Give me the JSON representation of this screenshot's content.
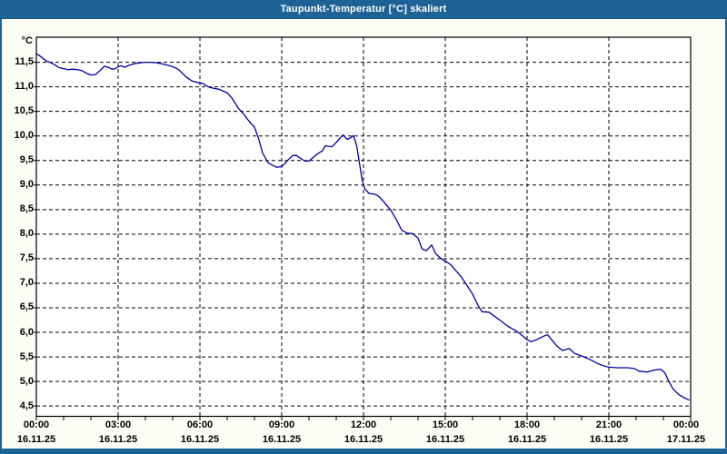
{
  "window": {
    "title": "Taupunkt-Temperatur [°C] skaliert"
  },
  "colors": {
    "frame": "#1d6395",
    "frame_edge_dark": "#14517d",
    "panel_background": "#fcfdf5",
    "plot_background": "#ffffff",
    "grid": "#000000",
    "axis": "#000000",
    "line": "#0000a8",
    "title_text": "#ffffff",
    "label_text": "#000000"
  },
  "chart_data": {
    "type": "line",
    "title": "Taupunkt-Temperatur [°C] skaliert",
    "xlabel": "",
    "ylabel": "°C",
    "x_unit": "hour-of-day",
    "xlim": [
      0,
      24
    ],
    "ylim": [
      4.29,
      12.01
    ],
    "grid": "dashed, black, horizontal every 0.5 °C, vertical every 3 h",
    "legend": "none",
    "y_ticks": [
      {
        "value": 11.5,
        "label": "11,5"
      },
      {
        "value": 11.0,
        "label": "11,0"
      },
      {
        "value": 10.5,
        "label": "10,5"
      },
      {
        "value": 10.0,
        "label": "10,0"
      },
      {
        "value": 9.5,
        "label": "9,5"
      },
      {
        "value": 9.0,
        "label": "9,0"
      },
      {
        "value": 8.5,
        "label": "8,5"
      },
      {
        "value": 8.0,
        "label": "8,0"
      },
      {
        "value": 7.5,
        "label": "7,5"
      },
      {
        "value": 7.0,
        "label": "7,0"
      },
      {
        "value": 6.5,
        "label": "6,5"
      },
      {
        "value": 6.0,
        "label": "6,0"
      },
      {
        "value": 5.5,
        "label": "5,5"
      },
      {
        "value": 5.0,
        "label": "5,0"
      },
      {
        "value": 4.5,
        "label": "4,5"
      }
    ],
    "x_ticks": [
      {
        "hour": 0,
        "time": "00:00",
        "date": "16.11.25"
      },
      {
        "hour": 3,
        "time": "03:00",
        "date": "16.11.25"
      },
      {
        "hour": 6,
        "time": "06:00",
        "date": "16.11.25"
      },
      {
        "hour": 9,
        "time": "09:00",
        "date": "16.11.25"
      },
      {
        "hour": 12,
        "time": "12:00",
        "date": "16.11.25"
      },
      {
        "hour": 15,
        "time": "15:00",
        "date": "16.11.25"
      },
      {
        "hour": 18,
        "time": "18:00",
        "date": "16.11.25"
      },
      {
        "hour": 21,
        "time": "21:00",
        "date": "16.11.25"
      },
      {
        "hour": 24,
        "time": "00:00",
        "date": "17.11.25"
      }
    ],
    "minor_x_tick_every_hours": 1,
    "series": [
      {
        "name": "Taupunkt-Temperatur",
        "color": "#0000a8",
        "points": [
          [
            0.0,
            11.68
          ],
          [
            0.2,
            11.6
          ],
          [
            0.35,
            11.53
          ],
          [
            0.5,
            11.5
          ],
          [
            0.67,
            11.45
          ],
          [
            0.83,
            11.39
          ],
          [
            1.0,
            11.37
          ],
          [
            1.17,
            11.35
          ],
          [
            1.33,
            11.36
          ],
          [
            1.5,
            11.35
          ],
          [
            1.67,
            11.33
          ],
          [
            1.83,
            11.28
          ],
          [
            2.0,
            11.24
          ],
          [
            2.17,
            11.25
          ],
          [
            2.33,
            11.33
          ],
          [
            2.5,
            11.42
          ],
          [
            2.63,
            11.4
          ],
          [
            2.77,
            11.36
          ],
          [
            2.9,
            11.37
          ],
          [
            3.0,
            11.41
          ],
          [
            3.1,
            11.43
          ],
          [
            3.25,
            11.4
          ],
          [
            3.4,
            11.44
          ],
          [
            3.6,
            11.47
          ],
          [
            3.8,
            11.49
          ],
          [
            4.0,
            11.5
          ],
          [
            4.2,
            11.5
          ],
          [
            4.4,
            11.49
          ],
          [
            4.6,
            11.47
          ],
          [
            4.8,
            11.44
          ],
          [
            5.0,
            11.41
          ],
          [
            5.2,
            11.36
          ],
          [
            5.35,
            11.28
          ],
          [
            5.5,
            11.2
          ],
          [
            5.7,
            11.12
          ],
          [
            5.9,
            11.09
          ],
          [
            6.1,
            11.07
          ],
          [
            6.3,
            11.0
          ],
          [
            6.5,
            10.97
          ],
          [
            6.7,
            10.95
          ],
          [
            6.9,
            10.9
          ],
          [
            7.0,
            10.88
          ],
          [
            7.2,
            10.75
          ],
          [
            7.4,
            10.57
          ],
          [
            7.6,
            10.45
          ],
          [
            7.8,
            10.3
          ],
          [
            8.0,
            10.18
          ],
          [
            8.15,
            9.95
          ],
          [
            8.3,
            9.65
          ],
          [
            8.5,
            9.45
          ],
          [
            8.67,
            9.4
          ],
          [
            8.83,
            9.36
          ],
          [
            9.0,
            9.38
          ],
          [
            9.1,
            9.43
          ],
          [
            9.25,
            9.52
          ],
          [
            9.4,
            9.6
          ],
          [
            9.55,
            9.6
          ],
          [
            9.7,
            9.54
          ],
          [
            9.85,
            9.49
          ],
          [
            10.0,
            9.49
          ],
          [
            10.15,
            9.56
          ],
          [
            10.3,
            9.63
          ],
          [
            10.5,
            9.7
          ],
          [
            10.6,
            9.8
          ],
          [
            10.72,
            9.79
          ],
          [
            10.85,
            9.78
          ],
          [
            10.95,
            9.84
          ],
          [
            11.1,
            9.93
          ],
          [
            11.25,
            10.02
          ],
          [
            11.4,
            9.93
          ],
          [
            11.55,
            9.97
          ],
          [
            11.63,
            10.01
          ],
          [
            11.75,
            9.8
          ],
          [
            11.85,
            9.45
          ],
          [
            11.95,
            9.1
          ],
          [
            12.05,
            8.92
          ],
          [
            12.2,
            8.83
          ],
          [
            12.45,
            8.81
          ],
          [
            12.6,
            8.75
          ],
          [
            12.8,
            8.62
          ],
          [
            13.0,
            8.49
          ],
          [
            13.2,
            8.3
          ],
          [
            13.4,
            8.08
          ],
          [
            13.6,
            8.02
          ],
          [
            13.8,
            8.01
          ],
          [
            14.0,
            7.92
          ],
          [
            14.15,
            7.7
          ],
          [
            14.3,
            7.66
          ],
          [
            14.5,
            7.78
          ],
          [
            14.65,
            7.6
          ],
          [
            14.85,
            7.5
          ],
          [
            15.0,
            7.45
          ],
          [
            15.2,
            7.38
          ],
          [
            15.4,
            7.25
          ],
          [
            15.6,
            7.12
          ],
          [
            15.8,
            6.95
          ],
          [
            16.0,
            6.78
          ],
          [
            16.2,
            6.55
          ],
          [
            16.35,
            6.42
          ],
          [
            16.6,
            6.41
          ],
          [
            16.8,
            6.33
          ],
          [
            17.0,
            6.25
          ],
          [
            17.3,
            6.12
          ],
          [
            17.6,
            6.03
          ],
          [
            17.85,
            5.92
          ],
          [
            18.0,
            5.85
          ],
          [
            18.15,
            5.81
          ],
          [
            18.35,
            5.85
          ],
          [
            18.6,
            5.92
          ],
          [
            18.75,
            5.95
          ],
          [
            18.9,
            5.85
          ],
          [
            19.1,
            5.72
          ],
          [
            19.3,
            5.63
          ],
          [
            19.55,
            5.67
          ],
          [
            19.75,
            5.57
          ],
          [
            20.0,
            5.52
          ],
          [
            20.3,
            5.45
          ],
          [
            20.6,
            5.36
          ],
          [
            20.85,
            5.31
          ],
          [
            21.0,
            5.29
          ],
          [
            21.3,
            5.28
          ],
          [
            21.7,
            5.28
          ],
          [
            21.95,
            5.26
          ],
          [
            22.1,
            5.21
          ],
          [
            22.4,
            5.19
          ],
          [
            22.65,
            5.23
          ],
          [
            22.9,
            5.25
          ],
          [
            23.05,
            5.18
          ],
          [
            23.2,
            5.0
          ],
          [
            23.35,
            4.85
          ],
          [
            23.55,
            4.74
          ],
          [
            23.75,
            4.67
          ],
          [
            23.95,
            4.62
          ]
        ]
      }
    ]
  }
}
